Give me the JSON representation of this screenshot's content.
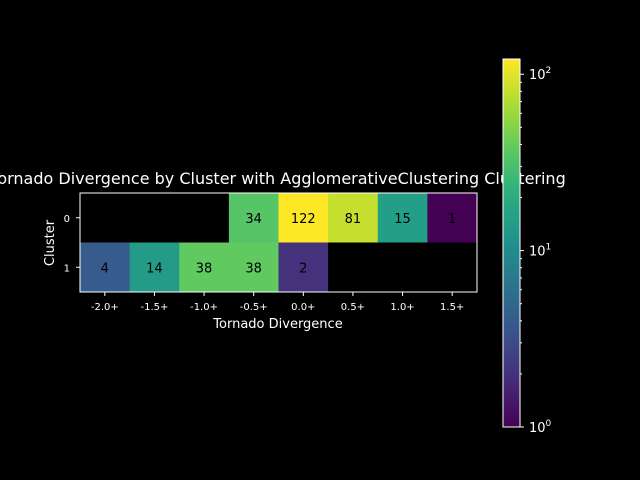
{
  "chart_data": {
    "type": "heatmap",
    "title": "Tornado Divergence by Cluster with AgglomerativeClustering Clustering",
    "xlabel": "Tornado Divergence",
    "ylabel": "Cluster",
    "x_categories": [
      "-2.0+",
      "-1.5+",
      "-1.0+",
      "-0.5+",
      "0.0+",
      "0.5+",
      "1.0+",
      "1.5+"
    ],
    "y_categories": [
      "0",
      "1"
    ],
    "values": [
      [
        null,
        null,
        null,
        34,
        122,
        81,
        15,
        1
      ],
      [
        4,
        14,
        38,
        38,
        2,
        null,
        null,
        null
      ]
    ],
    "color_scale": "log",
    "colormap": "viridis",
    "missing_color": "#000000",
    "colorbar": {
      "range": [
        1,
        122
      ],
      "ticks": [
        {
          "value": 1,
          "base": "10",
          "exp": "0"
        },
        {
          "value": 10,
          "base": "10",
          "exp": "1"
        },
        {
          "value": 100,
          "base": "10",
          "exp": "2"
        }
      ]
    }
  }
}
